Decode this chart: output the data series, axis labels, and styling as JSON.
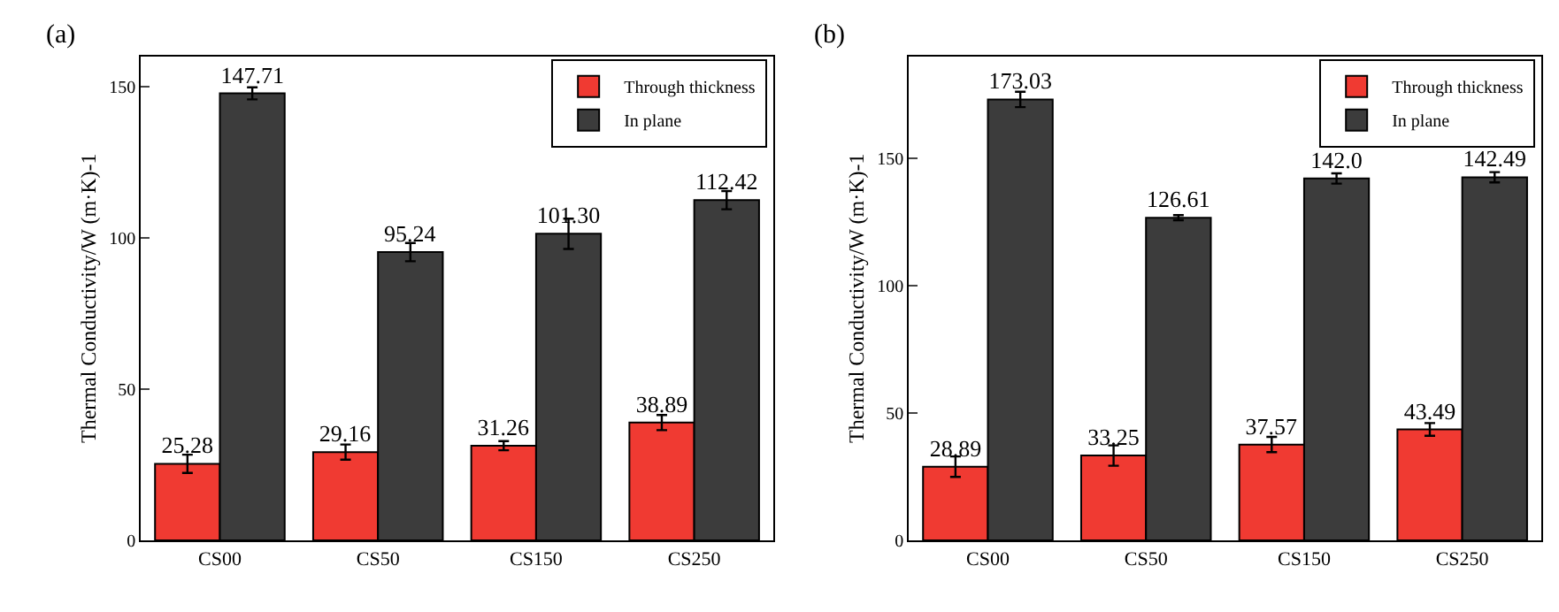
{
  "chart_data": [
    {
      "type": "bar",
      "title": "(a)",
      "ylabel": "Thermal Conductivity/W (m·K)-1",
      "categories": [
        "CS00",
        "CS50",
        "CS150",
        "CS250"
      ],
      "ylim": [
        0,
        160
      ],
      "yticks": [
        0,
        50,
        100,
        150
      ],
      "legend": "top right",
      "series": [
        {
          "name": "Through thickness",
          "color": "#f03a32",
          "values": [
            25.28,
            29.16,
            31.26,
            38.89
          ],
          "errors": [
            3,
            2.5,
            1.5,
            2.5
          ],
          "value_labels": [
            "25.28",
            "29.16",
            "31.26",
            "38.89"
          ]
        },
        {
          "name": "In plane",
          "color": "#3c3c3c",
          "values": [
            147.71,
            95.24,
            101.3,
            112.42
          ],
          "errors": [
            2,
            3,
            5,
            3
          ],
          "value_labels": [
            "147.71",
            "95.24",
            "101.30",
            "112.42"
          ]
        }
      ]
    },
    {
      "type": "bar",
      "title": "(b)",
      "ylabel": "Thermal Conductivity/W (m·K)-1",
      "categories": [
        "CS00",
        "CS50",
        "CS150",
        "CS250"
      ],
      "ylim": [
        0,
        190
      ],
      "yticks": [
        0,
        50,
        100,
        150
      ],
      "legend": "top right",
      "series": [
        {
          "name": "Through thickness",
          "color": "#f03a32",
          "values": [
            28.89,
            33.25,
            37.57,
            43.49
          ],
          "errors": [
            4,
            4,
            3,
            2.5
          ],
          "value_labels": [
            "28.89",
            "33.25",
            "37.57",
            "43.49"
          ]
        },
        {
          "name": "In plane",
          "color": "#3c3c3c",
          "values": [
            173.03,
            126.61,
            142.0,
            142.49
          ],
          "errors": [
            3,
            1,
            2,
            2
          ],
          "value_labels": [
            "173.03",
            "126.61",
            "142.0",
            "142.49"
          ]
        }
      ]
    }
  ]
}
